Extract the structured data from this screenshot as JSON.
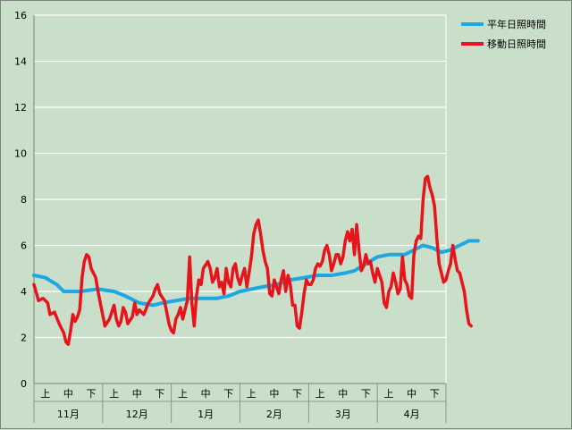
{
  "chart_data": {
    "type": "line",
    "title": "",
    "xlabel": "",
    "ylabel": "",
    "ylim": [
      0,
      16
    ],
    "yticks": [
      "0",
      "2",
      "4",
      "6",
      "8",
      "10",
      "12",
      "14",
      "16"
    ],
    "grid": true,
    "legend_position": "top-right",
    "months": [
      {
        "label": "11月",
        "subs": [
          "上",
          "中",
          "下"
        ]
      },
      {
        "label": "12月",
        "subs": [
          "上",
          "中",
          "下"
        ]
      },
      {
        "label": "1月",
        "subs": [
          "上",
          "中",
          "下"
        ]
      },
      {
        "label": "2月",
        "subs": [
          "上",
          "中",
          "下"
        ]
      },
      {
        "label": "3月",
        "subs": [
          "上",
          "中",
          "下"
        ]
      },
      {
        "label": "4月",
        "subs": [
          "上",
          "中",
          "下"
        ]
      }
    ],
    "x_unit": "day index (0 = 11月上旬初, 180 = 4月下旬末)",
    "series": [
      {
        "name": "平年日照時間",
        "color": "#1ea7e0",
        "points": [
          [
            0,
            4.7
          ],
          [
            5,
            4.6
          ],
          [
            10,
            4.3
          ],
          [
            13,
            4.0
          ],
          [
            20,
            4.0
          ],
          [
            28,
            4.1
          ],
          [
            35,
            4.0
          ],
          [
            40,
            3.8
          ],
          [
            46,
            3.5
          ],
          [
            52,
            3.4
          ],
          [
            56,
            3.5
          ],
          [
            62,
            3.6
          ],
          [
            68,
            3.7
          ],
          [
            75,
            3.7
          ],
          [
            80,
            3.7
          ],
          [
            85,
            3.8
          ],
          [
            90,
            4.0
          ],
          [
            95,
            4.1
          ],
          [
            100,
            4.2
          ],
          [
            106,
            4.3
          ],
          [
            112,
            4.5
          ],
          [
            118,
            4.6
          ],
          [
            124,
            4.7
          ],
          [
            130,
            4.7
          ],
          [
            136,
            4.8
          ],
          [
            140,
            4.9
          ],
          [
            145,
            5.2
          ],
          [
            150,
            5.5
          ],
          [
            155,
            5.6
          ],
          [
            162,
            5.6
          ],
          [
            166,
            5.8
          ],
          [
            170,
            6.0
          ],
          [
            174,
            5.9
          ],
          [
            178,
            5.7
          ],
          [
            182,
            5.8
          ],
          [
            186,
            6.0
          ],
          [
            190,
            6.2
          ],
          [
            194,
            6.2
          ]
        ]
      },
      {
        "name": "移動日照時間",
        "color": "#e8141b",
        "points": [
          [
            0,
            4.3
          ],
          [
            2,
            3.6
          ],
          [
            4,
            3.7
          ],
          [
            6,
            3.5
          ],
          [
            7,
            3.0
          ],
          [
            9,
            3.1
          ],
          [
            11,
            2.6
          ],
          [
            13,
            2.2
          ],
          [
            14,
            1.8
          ],
          [
            15,
            1.7
          ],
          [
            16,
            2.3
          ],
          [
            17,
            3.0
          ],
          [
            18,
            2.7
          ],
          [
            19,
            2.9
          ],
          [
            20,
            3.2
          ],
          [
            21,
            4.6
          ],
          [
            22,
            5.3
          ],
          [
            23,
            5.6
          ],
          [
            24,
            5.5
          ],
          [
            25,
            5.0
          ],
          [
            27,
            4.6
          ],
          [
            28,
            4.0
          ],
          [
            30,
            3.0
          ],
          [
            31,
            2.5
          ],
          [
            33,
            2.8
          ],
          [
            35,
            3.4
          ],
          [
            36,
            2.8
          ],
          [
            37,
            2.5
          ],
          [
            38,
            2.7
          ],
          [
            39,
            3.3
          ],
          [
            40,
            3.1
          ],
          [
            41,
            2.6
          ],
          [
            43,
            2.9
          ],
          [
            44,
            3.5
          ],
          [
            45,
            3.0
          ],
          [
            46,
            3.2
          ],
          [
            48,
            3.0
          ],
          [
            50,
            3.5
          ],
          [
            52,
            3.8
          ],
          [
            53,
            4.1
          ],
          [
            54,
            4.3
          ],
          [
            55,
            3.9
          ],
          [
            57,
            3.6
          ],
          [
            59,
            2.6
          ],
          [
            60,
            2.3
          ],
          [
            61,
            2.2
          ],
          [
            62,
            2.8
          ],
          [
            63,
            3.0
          ],
          [
            64,
            3.3
          ],
          [
            65,
            2.8
          ],
          [
            66,
            3.2
          ],
          [
            67,
            3.6
          ],
          [
            68,
            5.5
          ],
          [
            69,
            3.5
          ],
          [
            70,
            2.5
          ],
          [
            71,
            3.8
          ],
          [
            72,
            4.5
          ],
          [
            73,
            4.3
          ],
          [
            74,
            5.0
          ],
          [
            76,
            5.3
          ],
          [
            77,
            5.0
          ],
          [
            78,
            4.4
          ],
          [
            79,
            4.6
          ],
          [
            80,
            5.0
          ],
          [
            81,
            4.2
          ],
          [
            82,
            4.4
          ],
          [
            83,
            3.9
          ],
          [
            84,
            5.0
          ],
          [
            85,
            4.4
          ],
          [
            86,
            4.2
          ],
          [
            87,
            5.0
          ],
          [
            88,
            5.2
          ],
          [
            89,
            4.6
          ],
          [
            90,
            4.3
          ],
          [
            91,
            4.7
          ],
          [
            92,
            5.0
          ],
          [
            93,
            4.2
          ],
          [
            94,
            4.8
          ],
          [
            95,
            5.5
          ],
          [
            96,
            6.5
          ],
          [
            97,
            6.9
          ],
          [
            98,
            7.1
          ],
          [
            99,
            6.5
          ],
          [
            100,
            5.8
          ],
          [
            101,
            5.3
          ],
          [
            102,
            5.0
          ],
          [
            103,
            3.9
          ],
          [
            104,
            3.8
          ],
          [
            105,
            4.5
          ],
          [
            106,
            4.2
          ],
          [
            107,
            3.9
          ],
          [
            108,
            4.5
          ],
          [
            109,
            4.9
          ],
          [
            110,
            4.0
          ],
          [
            111,
            4.7
          ],
          [
            112,
            4.3
          ],
          [
            113,
            3.4
          ],
          [
            114,
            3.4
          ],
          [
            115,
            2.5
          ],
          [
            116,
            2.4
          ],
          [
            117,
            3.1
          ],
          [
            118,
            3.9
          ],
          [
            119,
            4.5
          ],
          [
            120,
            4.3
          ],
          [
            121,
            4.3
          ],
          [
            122,
            4.5
          ],
          [
            123,
            5.0
          ],
          [
            124,
            5.2
          ],
          [
            125,
            5.1
          ],
          [
            126,
            5.3
          ],
          [
            127,
            5.8
          ],
          [
            128,
            6.0
          ],
          [
            129,
            5.6
          ],
          [
            130,
            4.9
          ],
          [
            131,
            5.2
          ],
          [
            132,
            5.6
          ],
          [
            133,
            5.6
          ],
          [
            134,
            5.2
          ],
          [
            135,
            5.5
          ],
          [
            136,
            6.2
          ],
          [
            137,
            6.6
          ],
          [
            138,
            6.2
          ],
          [
            139,
            6.7
          ],
          [
            140,
            5.6
          ],
          [
            141,
            6.9
          ],
          [
            142,
            5.8
          ],
          [
            143,
            4.9
          ],
          [
            144,
            5.1
          ],
          [
            145,
            5.6
          ],
          [
            146,
            5.2
          ],
          [
            147,
            5.3
          ],
          [
            148,
            4.8
          ],
          [
            149,
            4.4
          ],
          [
            150,
            5.0
          ],
          [
            151,
            4.7
          ],
          [
            152,
            4.4
          ],
          [
            153,
            3.5
          ],
          [
            154,
            3.3
          ],
          [
            155,
            4.0
          ],
          [
            156,
            4.2
          ],
          [
            157,
            4.8
          ],
          [
            158,
            4.4
          ],
          [
            159,
            3.9
          ],
          [
            160,
            4.1
          ],
          [
            161,
            5.5
          ],
          [
            162,
            4.5
          ],
          [
            163,
            4.3
          ],
          [
            164,
            3.8
          ],
          [
            165,
            3.7
          ],
          [
            166,
            5.6
          ],
          [
            167,
            6.2
          ],
          [
            168,
            6.4
          ],
          [
            169,
            6.3
          ],
          [
            170,
            8.0
          ],
          [
            171,
            8.9
          ],
          [
            172,
            9.0
          ],
          [
            173,
            8.5
          ],
          [
            174,
            8.2
          ],
          [
            175,
            7.7
          ],
          [
            176,
            6.3
          ],
          [
            177,
            5.2
          ],
          [
            178,
            4.8
          ],
          [
            179,
            4.4
          ],
          [
            180,
            4.5
          ],
          [
            181,
            4.9
          ],
          [
            182,
            5.2
          ],
          [
            183,
            6.0
          ],
          [
            184,
            5.4
          ],
          [
            185,
            4.9
          ],
          [
            186,
            4.8
          ],
          [
            187,
            4.4
          ],
          [
            188,
            4.0
          ],
          [
            189,
            3.2
          ],
          [
            190,
            2.6
          ],
          [
            191,
            2.5
          ]
        ]
      }
    ]
  }
}
